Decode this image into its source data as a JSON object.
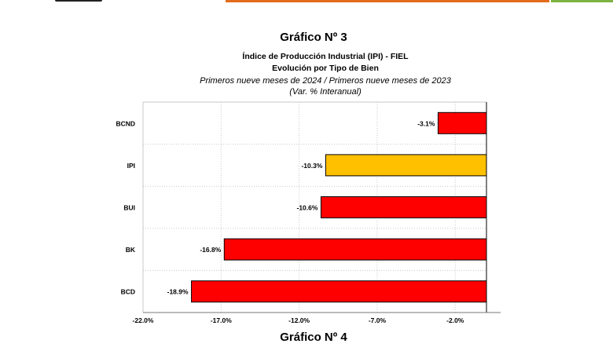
{
  "figure_title": "Gráfico Nº 3",
  "next_figure_title": "Gráfico Nº 4",
  "chart_data": {
    "type": "bar",
    "orientation": "horizontal",
    "title": "Índice de Producción Industrial (IPI) - FIEL",
    "subtitle_lines": [
      "Evolución por Tipo de Bien",
      "Primeros nueve meses de 2024 / Primeros nueve meses de 2023",
      "(Var. % Interanual)"
    ],
    "categories": [
      "BCND",
      "IPI",
      "BUI",
      "BK",
      "BCD"
    ],
    "values": [
      -3.1,
      -10.3,
      -10.6,
      -16.8,
      -18.9
    ],
    "data_labels": [
      "-3.1%",
      "-10.3%",
      "-10.6%",
      "-16.8%",
      "-18.9%"
    ],
    "bar_colors": [
      "#ff0000",
      "#ffc000",
      "#ff0000",
      "#ff0000",
      "#ff0000"
    ],
    "xlim": [
      -22.0,
      0.0
    ],
    "x_ticks": [
      -22.0,
      -17.0,
      -12.0,
      -7.0,
      -2.0
    ],
    "x_tick_labels": [
      "-22.0%",
      "-17.0%",
      "-12.0%",
      "-7.0%",
      "-2.0%"
    ],
    "grid": true,
    "legend": "none"
  }
}
